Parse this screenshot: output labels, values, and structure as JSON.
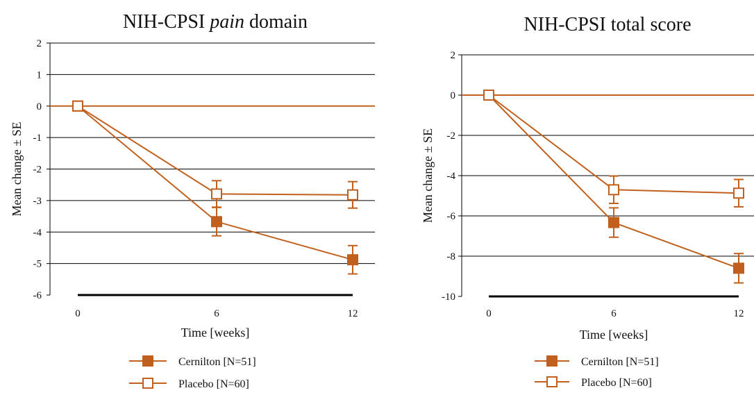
{
  "colors": {
    "series": "#C0601C",
    "grid": "#000000",
    "baseline": "#000000"
  },
  "chart_data": [
    {
      "type": "line",
      "title_parts": [
        "NIH-CPSI ",
        "pain",
        " domain"
      ],
      "xlabel": "Time [weeks]",
      "ylabel": "Mean change ± SE",
      "x": [
        0,
        6,
        12
      ],
      "x_ticks": [
        "0",
        "6",
        "12"
      ],
      "ylim": [
        -6,
        2
      ],
      "y_ticks": [
        2,
        1,
        0,
        -1,
        -2,
        -3,
        -4,
        -5,
        -6
      ],
      "grid": true,
      "legend_position": "bottom",
      "series": [
        {
          "name": "Cernilton [N=51]",
          "marker": "filled-square",
          "values": [
            0,
            -3.67,
            -4.88
          ],
          "se": [
            0,
            0.45,
            0.45
          ]
        },
        {
          "name": "Placebo [N=60]",
          "marker": "open-square",
          "values": [
            0,
            -2.79,
            -2.82
          ],
          "se": [
            0,
            0.42,
            0.42
          ]
        }
      ]
    },
    {
      "type": "line",
      "title_parts": [
        "NIH-CPSI total score"
      ],
      "xlabel": "Time [weeks]",
      "ylabel": "Mean change ± SE",
      "x": [
        0,
        6,
        12
      ],
      "x_ticks": [
        "0",
        "6",
        "12"
      ],
      "ylim": [
        -10,
        2
      ],
      "y_ticks": [
        2,
        0,
        -2,
        -4,
        -6,
        -8,
        -10
      ],
      "grid": true,
      "legend_position": "bottom",
      "series": [
        {
          "name": "Cernilton [N=51]",
          "marker": "filled-square",
          "values": [
            0,
            -6.33,
            -8.6
          ],
          "se": [
            0,
            0.73,
            0.73
          ]
        },
        {
          "name": "Placebo [N=60]",
          "marker": "open-square",
          "values": [
            0,
            -4.7,
            -4.87
          ],
          "se": [
            0,
            0.68,
            0.68
          ]
        }
      ]
    }
  ]
}
